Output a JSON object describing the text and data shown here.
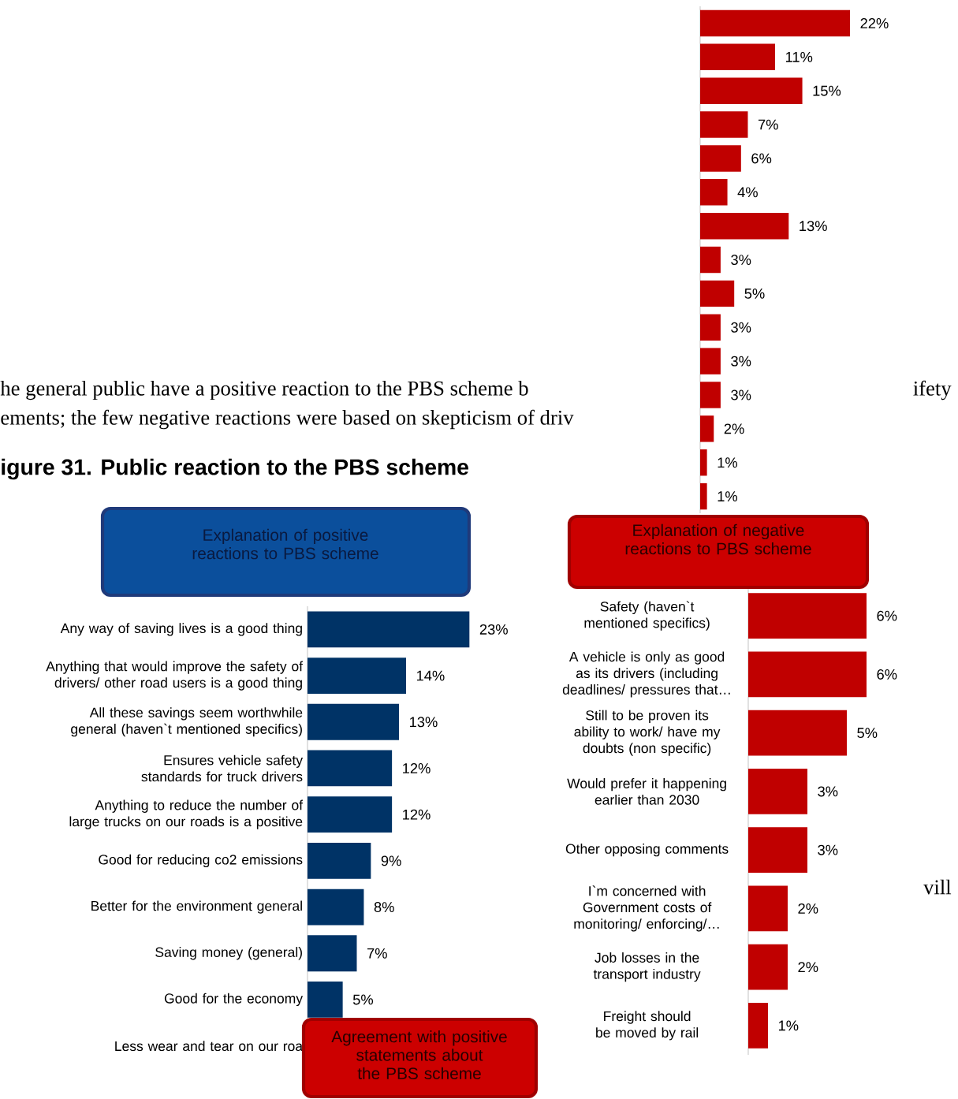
{
  "chart_data": [
    {
      "type": "bar",
      "orientation": "horizontal",
      "color": "#c00000",
      "categories": [
        null,
        null,
        null,
        null,
        null,
        null,
        null,
        null,
        null,
        null,
        null,
        null,
        null,
        null,
        null
      ],
      "values": [
        22,
        11,
        15,
        7,
        6,
        4,
        13,
        3,
        5,
        3,
        3,
        3,
        2,
        1,
        1
      ],
      "value_labels": [
        "22%",
        "11%",
        "15%",
        "7%",
        "6%",
        "4%",
        "13%",
        "3%",
        "5%",
        "3%",
        "3%",
        "3%",
        "2%",
        "1%",
        "1%"
      ],
      "annotations": [
        "he general public have a positive reaction to the PBS scheme b",
        "ifety",
        "ements; the few negative reactions were based on skepticism of driv",
        "igure 31. Public reaction to the PBS scheme",
        "vill",
        "Agreement with positive statements about the PBS scheme"
      ]
    },
    {
      "type": "bar",
      "orientation": "horizontal",
      "color": "#003366",
      "title": "Explanation of positive reactions to PBS scheme",
      "categories": [
        "Any way of saving lives is a good thing",
        "Anything that would improve the safety of drivers/ other road users is a good thing",
        "All these savings seem worthwhile general (haven`t mentioned specifics)",
        "Ensures vehicle safety standards for truck drivers",
        "Anything to reduce the number of large trucks on our roads is a positive",
        "Good for reducing co2 emissions",
        "Better for the environment general",
        "Saving money (general)",
        "Good for the economy",
        "Less wear and tear on our roa"
      ],
      "values": [
        23,
        14,
        13,
        12,
        12,
        9,
        8,
        7,
        5,
        null
      ],
      "value_labels": [
        "23%",
        "14%",
        "13%",
        "12%",
        "12%",
        "9%",
        "8%",
        "7%",
        "5%",
        null
      ]
    },
    {
      "type": "bar",
      "orientation": "horizontal",
      "color": "#c00000",
      "title": "Explanation of negative reactions to PBS scheme",
      "categories": [
        "Safety (haven`t mentioned specifics)",
        "A vehicle is only as good as its drivers (including deadlines/ pressures that…",
        "Still to be proven its ability to work/ have my doubts (non specific)",
        "Would prefer it happening earlier than 2030",
        "Other opposing comments",
        "I`m concerned with Government costs of monitoring/ enforcing/…",
        "Job losses in the transport industry",
        "Freight should be moved by rail"
      ],
      "values": [
        6,
        6,
        5,
        3,
        3,
        2,
        2,
        1
      ],
      "value_labels": [
        "6%",
        "6%",
        "5%",
        "3%",
        "3%",
        "2%",
        "2%",
        "1%"
      ]
    }
  ]
}
